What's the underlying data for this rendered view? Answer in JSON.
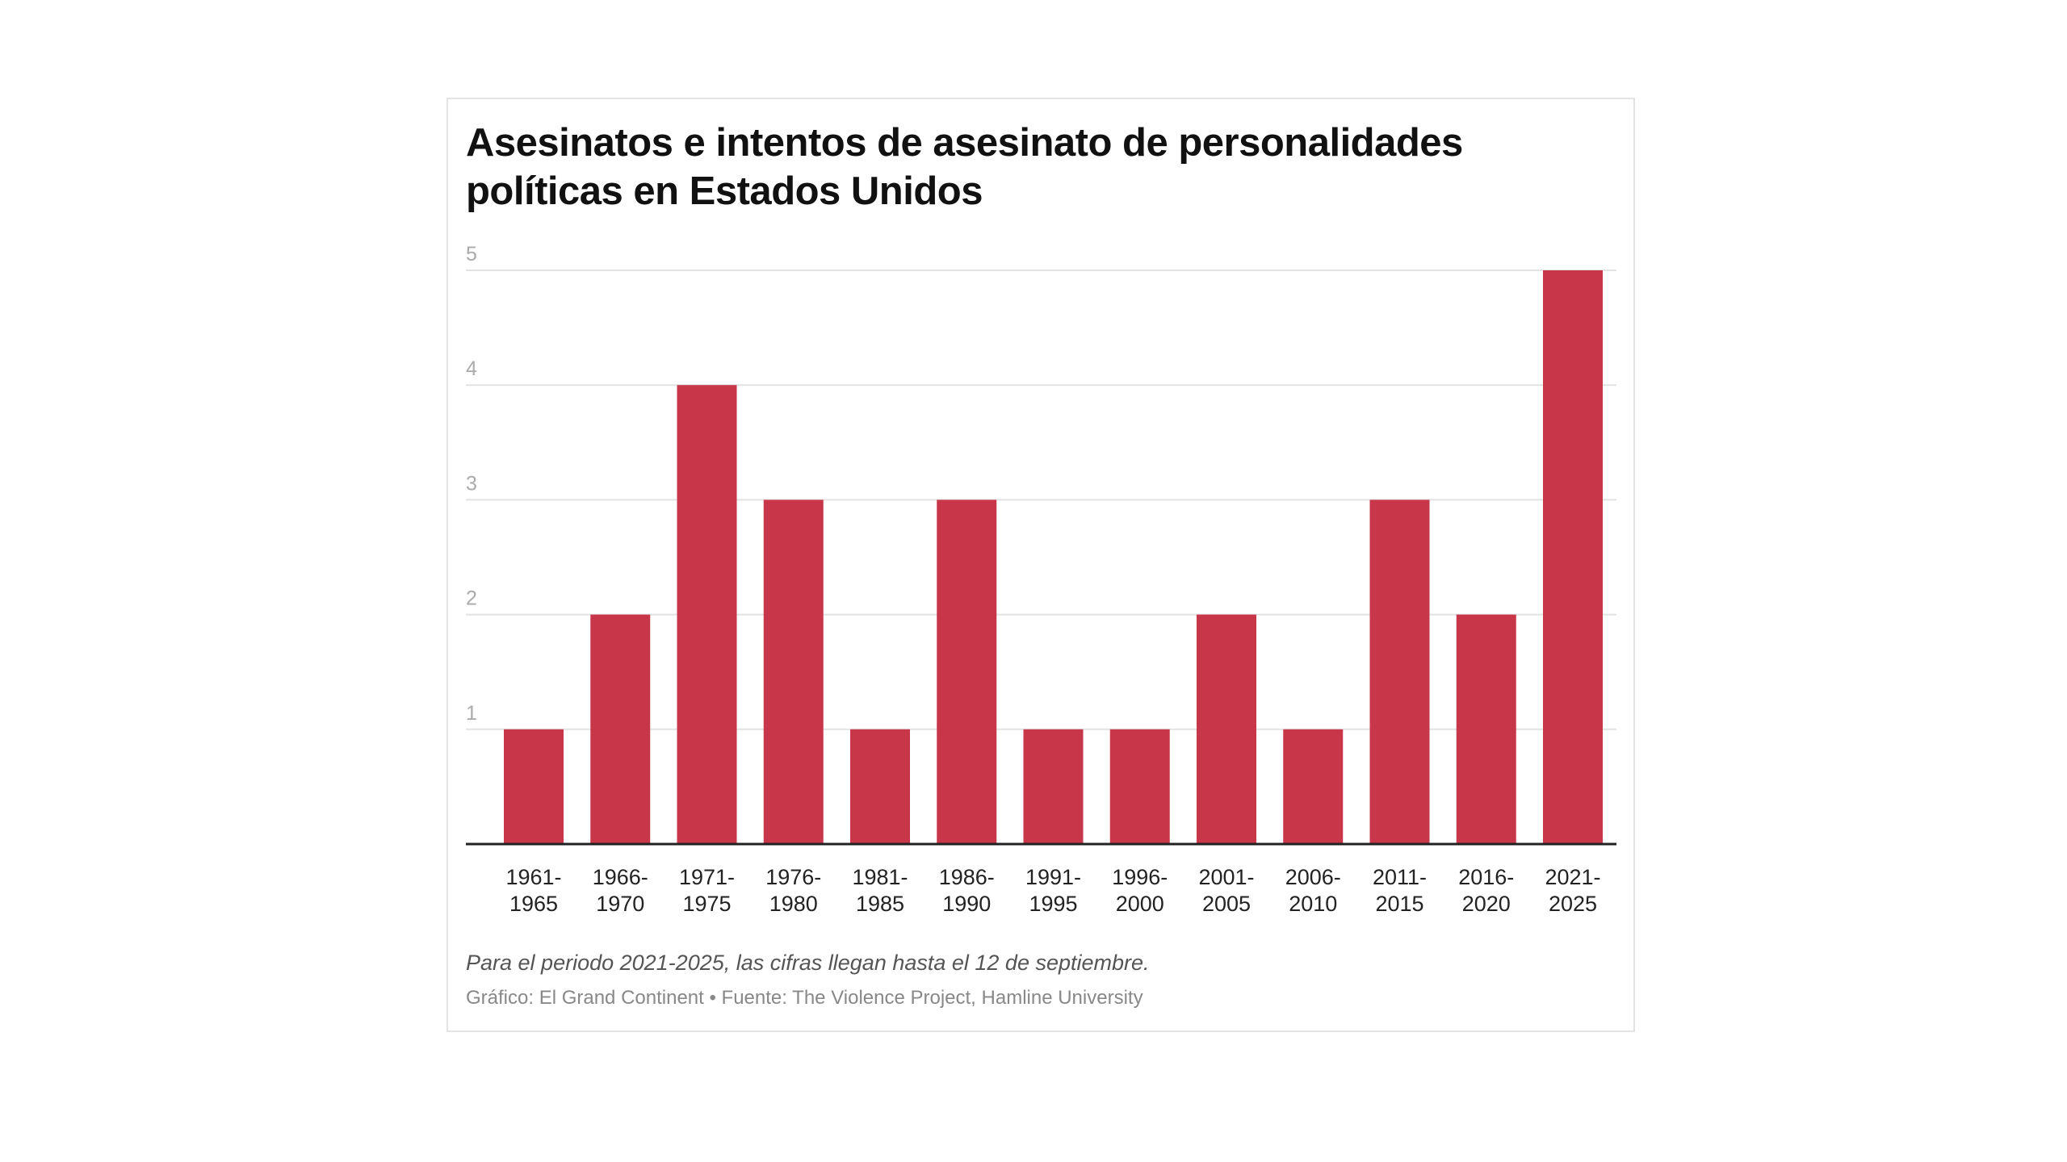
{
  "chart_data": {
    "type": "bar",
    "title": "Asesinatos e intentos de asesinato de personalidades políticas en Estados Unidos",
    "categories": [
      [
        "1961-",
        "1965"
      ],
      [
        "1966-",
        "1970"
      ],
      [
        "1971-",
        "1975"
      ],
      [
        "1976-",
        "1980"
      ],
      [
        "1981-",
        "1985"
      ],
      [
        "1986-",
        "1990"
      ],
      [
        "1991-",
        "1995"
      ],
      [
        "1996-",
        "2000"
      ],
      [
        "2001-",
        "2005"
      ],
      [
        "2006-",
        "2010"
      ],
      [
        "2011-",
        "2015"
      ],
      [
        "2016-",
        "2020"
      ],
      [
        "2021-",
        "2025"
      ]
    ],
    "values": [
      1,
      2,
      4,
      3,
      1,
      3,
      1,
      1,
      2,
      1,
      3,
      2,
      5
    ],
    "yticks": [
      1,
      2,
      3,
      4,
      5
    ],
    "ylim": [
      0,
      5
    ],
    "xlabel": "",
    "ylabel": "",
    "grid": true,
    "bar_color": "#c8364a",
    "note": "Para el periodo 2021-2025, las cifras llegan hasta el 12 de septiembre.",
    "source": "Gráfico: El Grand Continent • Fuente: The Violence Project, Hamline University"
  }
}
